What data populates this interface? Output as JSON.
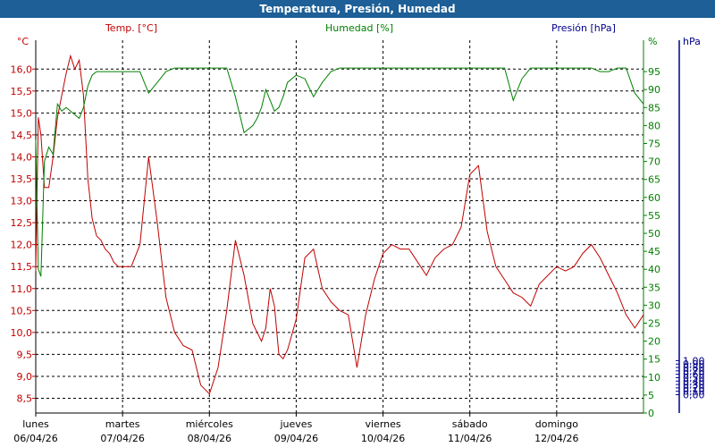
{
  "window": {
    "title": "Temperatura, Presión, Humedad"
  },
  "colors": {
    "temperature": "#c00000",
    "humidity": "#008000",
    "pressure": "#00008b",
    "grid": "#000000",
    "title_bar": "#1d5f96"
  },
  "chart_data": {
    "type": "line",
    "title": "Temperatura, Presión, Humedad",
    "grid": true,
    "axes": {
      "temperature": {
        "label": "Temp. [°C]",
        "unit": "°C",
        "range": [
          8.25,
          16.5
        ],
        "ticks": [
          "16,0",
          "15,5",
          "15,0",
          "14,5",
          "14,0",
          "13,5",
          "13,0",
          "12,5",
          "12,0",
          "11,5",
          "11,0",
          "10,5",
          "10,0",
          "9,5",
          "9,0",
          "8,5"
        ],
        "tick_values": [
          16,
          15.5,
          15,
          14.5,
          14,
          13.5,
          13,
          12.5,
          12,
          11.5,
          11,
          10.5,
          10,
          9.5,
          9,
          8.5
        ]
      },
      "humidity": {
        "label": "Humedad [%]",
        "unit": "%",
        "range": [
          0,
          100
        ],
        "ticks": [
          "95",
          "90",
          "85",
          "80",
          "75",
          "70",
          "65",
          "60",
          "55",
          "50",
          "45",
          "40",
          "35",
          "30",
          "25",
          "20",
          "15",
          "10",
          "5",
          "0"
        ],
        "tick_values": [
          95,
          90,
          85,
          80,
          75,
          70,
          65,
          60,
          55,
          50,
          45,
          40,
          35,
          30,
          25,
          20,
          15,
          10,
          5,
          0
        ]
      },
      "pressure": {
        "label": "Presión [hPa]",
        "unit": "hPa",
        "range": [
          -0.05,
          1.05
        ],
        "ticks": [
          "1,00",
          "0,90",
          "0,80",
          "0,70",
          "0,60",
          "0,50",
          "0,40",
          "0,30",
          "0,20",
          "0,10",
          "0,00"
        ],
        "tick_values": [
          1,
          0.9,
          0.8,
          0.7,
          0.6,
          0.5,
          0.4,
          0.3,
          0.2,
          0.1,
          0
        ]
      }
    },
    "x_days": [
      {
        "day": "lunes",
        "date": "06/04/26"
      },
      {
        "day": "martes",
        "date": "07/04/26"
      },
      {
        "day": "miércoles",
        "date": "08/04/26"
      },
      {
        "day": "jueves",
        "date": "09/04/26"
      },
      {
        "day": "viernes",
        "date": "10/04/26"
      },
      {
        "day": "sábado",
        "date": "11/04/26"
      },
      {
        "day": "domingo",
        "date": "12/04/26"
      }
    ],
    "series": [
      {
        "name": "Temp. [°C]",
        "axis": "temperature",
        "x": [
          0,
          0.03,
          0.06,
          0.1,
          0.15,
          0.2,
          0.25,
          0.3,
          0.35,
          0.4,
          0.45,
          0.5,
          0.55,
          0.6,
          0.65,
          0.7,
          0.75,
          0.8,
          0.85,
          0.9,
          0.95,
          1.0,
          1.1,
          1.2,
          1.3,
          1.4,
          1.5,
          1.6,
          1.7,
          1.8,
          1.9,
          2.0,
          2.1,
          2.2,
          2.3,
          2.4,
          2.5,
          2.55,
          2.6,
          2.65,
          2.7,
          2.75,
          2.8,
          2.85,
          2.9,
          3.0,
          3.1,
          3.2,
          3.3,
          3.4,
          3.5,
          3.6,
          3.7,
          3.8,
          3.9,
          4.0,
          4.1,
          4.2,
          4.3,
          4.4,
          4.5,
          4.6,
          4.7,
          4.8,
          4.9,
          5.0,
          5.1,
          5.2,
          5.3,
          5.4,
          5.5,
          5.6,
          5.7,
          5.8,
          5.9,
          6.0,
          6.1,
          6.2,
          6.3,
          6.4,
          6.5,
          6.6,
          6.7,
          6.8,
          6.9,
          7.0
        ],
        "values": [
          11.4,
          14.9,
          14.5,
          13.3,
          13.3,
          14.0,
          14.9,
          15.4,
          15.9,
          16.3,
          16.0,
          16.2,
          15.4,
          13.5,
          12.6,
          12.2,
          12.1,
          11.9,
          11.8,
          11.6,
          11.5,
          11.5,
          11.5,
          12.0,
          14.0,
          12.5,
          10.8,
          10.0,
          9.7,
          9.6,
          8.8,
          8.6,
          9.2,
          10.5,
          12.1,
          11.3,
          10.2,
          10.0,
          9.8,
          10.1,
          11.0,
          10.6,
          9.5,
          9.4,
          9.6,
          10.3,
          11.7,
          11.9,
          11.0,
          10.7,
          10.5,
          10.4,
          9.2,
          10.4,
          11.2,
          11.8,
          12.0,
          11.9,
          11.9,
          11.6,
          11.3,
          11.7,
          11.9,
          12.0,
          12.4,
          13.6,
          13.8,
          12.3,
          11.5,
          11.2,
          10.9,
          10.8,
          10.6,
          11.1,
          11.3,
          11.5,
          11.4,
          11.5,
          11.8,
          12.0,
          11.7,
          11.3,
          10.9,
          10.4,
          10.1,
          10.4
        ]
      },
      {
        "name": "Humedad [%]",
        "axis": "humidity",
        "x": [
          0,
          0.03,
          0.06,
          0.1,
          0.15,
          0.2,
          0.25,
          0.3,
          0.35,
          0.4,
          0.45,
          0.5,
          0.55,
          0.6,
          0.65,
          0.7,
          0.75,
          0.8,
          0.85,
          0.9,
          0.95,
          1.0,
          1.1,
          1.2,
          1.3,
          1.4,
          1.5,
          1.6,
          1.7,
          1.8,
          1.9,
          2.0,
          2.1,
          2.2,
          2.3,
          2.4,
          2.5,
          2.55,
          2.6,
          2.65,
          2.7,
          2.75,
          2.8,
          2.85,
          2.9,
          3.0,
          3.1,
          3.2,
          3.3,
          3.4,
          3.5,
          3.6,
          3.7,
          3.8,
          3.9,
          4.0,
          4.1,
          4.2,
          4.3,
          4.4,
          4.5,
          4.6,
          4.7,
          4.8,
          4.9,
          5.0,
          5.1,
          5.2,
          5.3,
          5.4,
          5.5,
          5.6,
          5.7,
          5.8,
          5.9,
          6.0,
          6.1,
          6.2,
          6.3,
          6.4,
          6.5,
          6.6,
          6.7,
          6.8,
          6.9,
          7.0
        ],
        "values": [
          76,
          40,
          38,
          70,
          74,
          72,
          86,
          84,
          85,
          84,
          83,
          82,
          85,
          91,
          94,
          95,
          95,
          95,
          95,
          95,
          95,
          95,
          95,
          95,
          89,
          92,
          95,
          96,
          96,
          96,
          96,
          96,
          96,
          96,
          88,
          78,
          80,
          82,
          85,
          90,
          87,
          84,
          85,
          88,
          92,
          94,
          93,
          88,
          92,
          95,
          96,
          96,
          96,
          96,
          96,
          96,
          96,
          96,
          96,
          96,
          96,
          96,
          96,
          96,
          96,
          96,
          96,
          96,
          96,
          96,
          87,
          93,
          96,
          96,
          96,
          96,
          96,
          96,
          96,
          96,
          95,
          95,
          96,
          96,
          89,
          86
        ]
      }
    ]
  }
}
